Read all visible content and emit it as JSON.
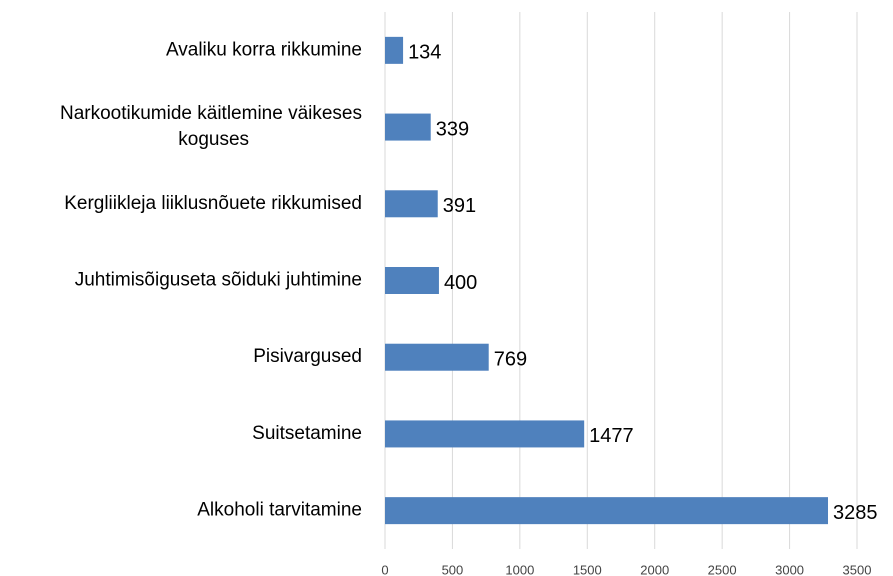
{
  "chart_data": {
    "type": "bar",
    "orientation": "horizontal",
    "categories": [
      "Avaliku korra rikkumine",
      "Narkootikumide käitlemine väikeses koguses",
      "Kergliikleja liiklusnõuete rikkumised",
      "Juhtimisõiguseta sõiduki juhtimine",
      "Pisivargused",
      "Suitsetamine",
      "Alkoholi tarvitamine"
    ],
    "values": [
      134,
      339,
      391,
      400,
      769,
      1477,
      3285
    ],
    "color": "#4f81bd",
    "xlim": [
      0,
      3500
    ],
    "xticks": [
      0,
      500,
      1000,
      1500,
      2000,
      2500,
      3000,
      3500
    ],
    "grid": true
  }
}
